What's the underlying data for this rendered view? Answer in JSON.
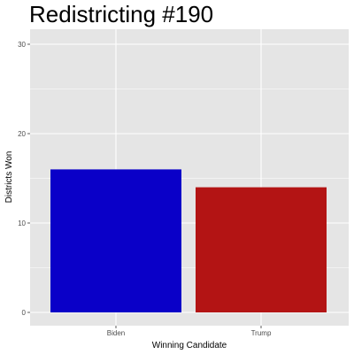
{
  "chart_data": {
    "type": "bar",
    "title": "Redistricting #190",
    "xlabel": "Winning Candidate",
    "ylabel": "Districts Won",
    "categories": [
      "Biden",
      "Trump"
    ],
    "values": [
      16,
      14
    ],
    "colors": [
      "#0a00c8",
      "#b31414"
    ],
    "ylim": [
      0,
      31.5
    ],
    "yticks": [
      0,
      10,
      20,
      30
    ],
    "panel_background": "#e5e5e5",
    "grid": true,
    "grid_color": "#ffffff"
  }
}
